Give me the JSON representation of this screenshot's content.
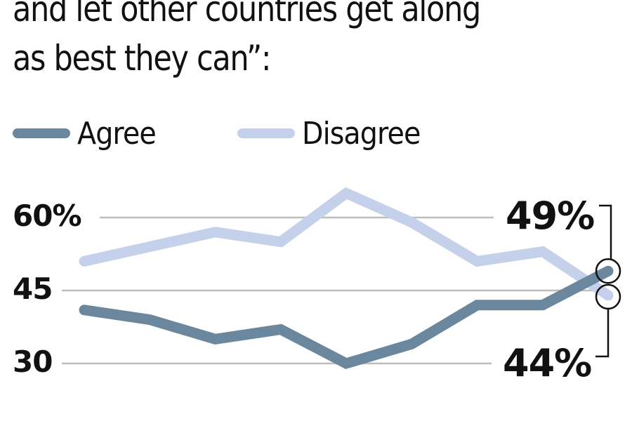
{
  "title": {
    "line1": "and let other countries get along",
    "line2": "as best they can”:"
  },
  "legend": [
    {
      "label": "Agree",
      "color": "#6a879e"
    },
    {
      "label": "Disagree",
      "color": "#c5d1ea"
    }
  ],
  "y_ticks": [
    {
      "label": "60%",
      "value": 60
    },
    {
      "label": "45",
      "value": 45
    },
    {
      "label": "30",
      "value": 30
    }
  ],
  "end_labels": {
    "agree": "49%",
    "disagree": "44%"
  },
  "colors": {
    "agree": "#6a879e",
    "disagree": "#c5d1ea",
    "grid": "#bdbdbd",
    "text": "#111111"
  },
  "chart_data": {
    "type": "line",
    "title": "and let other countries get along as best they can”:",
    "xlabel": "",
    "ylabel": "",
    "x": [
      1,
      2,
      3,
      4,
      5,
      6,
      7,
      8,
      9
    ],
    "series": [
      {
        "name": "Agree",
        "values": [
          41,
          39,
          35,
          37,
          30,
          34,
          42,
          42,
          49
        ]
      },
      {
        "name": "Disagree",
        "values": [
          51,
          54,
          57,
          55,
          65,
          59,
          51,
          53,
          44
        ]
      }
    ],
    "y_ticks": [
      30,
      45,
      60
    ],
    "ylim": [
      28,
      66
    ],
    "grid": true,
    "legend_position": "top",
    "annotations": [
      {
        "series": "Agree",
        "label": "49%",
        "position": "last point, above"
      },
      {
        "series": "Disagree",
        "label": "44%",
        "position": "last point, below"
      }
    ]
  }
}
